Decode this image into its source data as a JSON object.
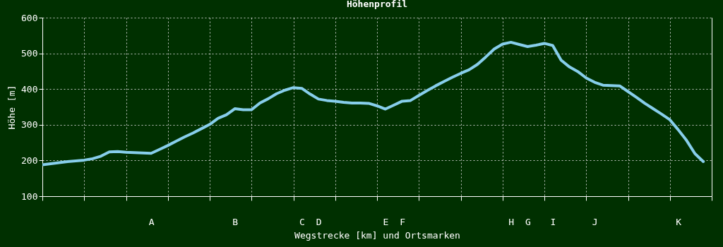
{
  "chart_data": {
    "type": "line",
    "title": "Höhenprofil",
    "xlabel": "Wegstrecke [km] und Ortsmarken",
    "ylabel": "Höhe [m]",
    "categories": [
      null,
      null,
      null,
      null,
      null,
      null,
      null,
      null,
      null,
      null,
      null,
      null,
      null,
      "A",
      null,
      null,
      null,
      null,
      null,
      null,
      null,
      null,
      null,
      "B",
      null,
      null,
      null,
      null,
      null,
      null,
      null,
      "C",
      null,
      "D",
      null,
      null,
      null,
      null,
      null,
      null,
      null,
      "E",
      null,
      "F",
      null,
      null,
      null,
      null,
      null,
      null,
      null,
      null,
      null,
      null,
      null,
      null,
      "H",
      null,
      "G",
      null,
      null,
      "I",
      null,
      null,
      null,
      null,
      "J",
      null,
      null,
      null,
      null,
      null,
      null,
      null,
      null,
      null,
      "K",
      null,
      null,
      null,
      null
    ],
    "series": [
      {
        "color": "#87ceeb",
        "values": [
          188,
          191,
          194,
          197,
          199,
          201,
          205,
          212,
          224,
          225,
          223,
          222,
          221,
          220,
          231,
          242,
          254,
          266,
          277,
          289,
          301,
          318,
          328,
          345,
          342,
          342,
          361,
          373,
          387,
          397,
          404,
          402,
          386,
          372,
          368,
          366,
          363,
          361,
          361,
          360,
          353,
          344,
          355,
          366,
          368,
          382,
          396,
          409,
          421,
          433,
          444,
          454,
          469,
          490,
          512,
          526,
          531,
          525,
          519,
          523,
          528,
          522,
          481,
          462,
          449,
          431,
          419,
          411,
          410,
          409,
          393,
          377,
          360,
          345,
          330,
          314,
          286,
          256,
          219,
          197,
          null
        ]
      }
    ],
    "ylim": [
      100,
      600
    ],
    "yticks": [
      100,
      200,
      300,
      400,
      500,
      600
    ],
    "grid": true,
    "line_style": "solid"
  }
}
